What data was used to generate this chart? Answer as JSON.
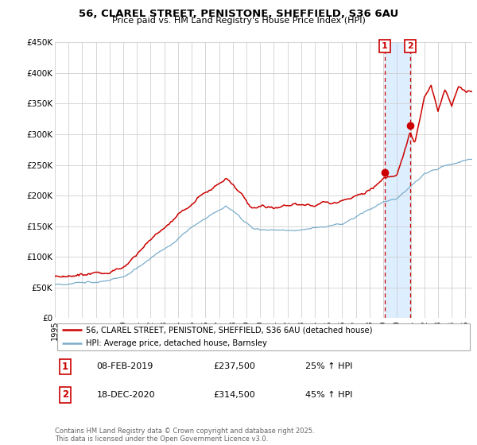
{
  "title": "56, CLAREL STREET, PENISTONE, SHEFFIELD, S36 6AU",
  "subtitle": "Price paid vs. HM Land Registry's House Price Index (HPI)",
  "legend_label1": "56, CLAREL STREET, PENISTONE, SHEFFIELD, S36 6AU (detached house)",
  "legend_label2": "HPI: Average price, detached house, Barnsley",
  "color1": "#cc0000",
  "color2": "#7aadcb",
  "shade_color": "#ddeeff",
  "vline_color": "#cc0000",
  "sale1_date": "08-FEB-2019",
  "sale1_price": "£237,500",
  "sale1_hpi": "25% ↑ HPI",
  "sale2_date": "18-DEC-2020",
  "sale2_price": "£314,500",
  "sale2_hpi": "45% ↑ HPI",
  "footer": "Contains HM Land Registry data © Crown copyright and database right 2025.\nThis data is licensed under the Open Government Licence v3.0.",
  "ylim": [
    0,
    450000
  ],
  "yticks": [
    0,
    50000,
    100000,
    150000,
    200000,
    250000,
    300000,
    350000,
    400000,
    450000
  ],
  "ytick_labels": [
    "£0",
    "£50K",
    "£100K",
    "£150K",
    "£200K",
    "£250K",
    "£300K",
    "£350K",
    "£400K",
    "£450K"
  ],
  "sale1_x": 2019.1,
  "sale1_y": 237500,
  "sale2_x": 2020.96,
  "sale2_y": 314500,
  "vline1_x": 2019.1,
  "vline2_x": 2020.96,
  "xlim_left": 1995,
  "xlim_right": 2025.5
}
